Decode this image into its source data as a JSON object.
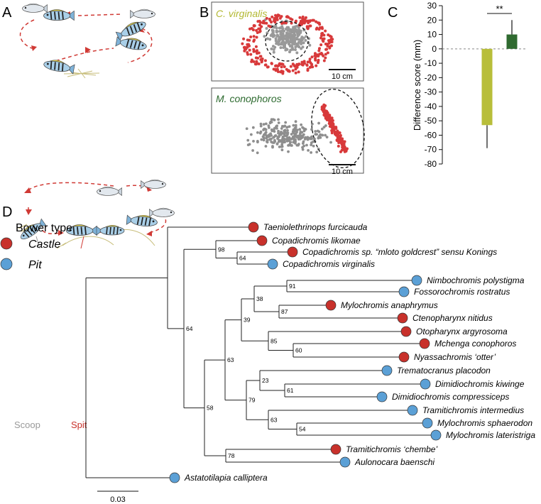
{
  "panel_labels": [
    "A",
    "B",
    "C",
    "D"
  ],
  "panel_a": {
    "scoop_label": "Scoop",
    "spit_label": "Spit"
  },
  "panel_b": {
    "plots": [
      {
        "title": "C. virginalis",
        "title_color": "#b3b832",
        "scale_label": "10 cm"
      },
      {
        "title": "M. conophoros",
        "title_color": "#2e6b30",
        "scale_label": "10 cm"
      }
    ]
  },
  "chart_data": {
    "type": "bar",
    "ylabel": "Difference score (mm)",
    "categories": [
      null,
      null
    ],
    "values": [
      -53,
      10
    ],
    "errors": [
      16,
      10
    ],
    "colors": [
      "#b8be3a",
      "#2f6a30"
    ],
    "ylim": [
      -80,
      30
    ],
    "yticks": [
      -80,
      -70,
      -60,
      -50,
      -40,
      -30,
      -20,
      -10,
      0,
      10,
      20,
      30
    ],
    "significance": "**",
    "zero_line": "dashed"
  },
  "tree": {
    "legend_title": "Bower type",
    "bower_types": [
      {
        "name": "Castle",
        "color": "#c8312b"
      },
      {
        "name": "Pit",
        "color": "#5ba0d6"
      }
    ],
    "taxa": [
      {
        "name": "Taeniolethrinops furcicauda",
        "bower": "Castle"
      },
      {
        "name": "Copadichromis likomae",
        "bower": "Castle"
      },
      {
        "name": "Copadichromis sp. “mloto goldcrest” sensu Konings",
        "bower": "Castle"
      },
      {
        "name": "Copadichromis virginalis",
        "bower": "Pit"
      },
      {
        "name": "Nimbochromis polystigma",
        "bower": "Pit"
      },
      {
        "name": "Fossorochromis rostratus",
        "bower": "Pit"
      },
      {
        "name": "Mylochromis anaphrymus",
        "bower": "Castle"
      },
      {
        "name": "Ctenopharynx nitidus",
        "bower": "Castle"
      },
      {
        "name": "Otopharynx argyrosoma",
        "bower": "Castle"
      },
      {
        "name": "Mchenga conophoros",
        "bower": "Castle"
      },
      {
        "name": "Nyassachromis ‘otter’",
        "bower": "Castle"
      },
      {
        "name": "Trematocranus placodon",
        "bower": "Pit"
      },
      {
        "name": "Dimidiochromis kiwinge",
        "bower": "Pit"
      },
      {
        "name": "Dimidiochromis compressiceps",
        "bower": "Pit"
      },
      {
        "name": "Tramitichromis intermedius",
        "bower": "Pit"
      },
      {
        "name": "Mylochromis sphaerodon",
        "bower": "Pit"
      },
      {
        "name": "Mylochromis lateristriga",
        "bower": "Pit"
      },
      {
        "name": "Tramitichromis ‘chembe’",
        "bower": "Castle"
      },
      {
        "name": "Aulonocara baenschi",
        "bower": "Pit"
      },
      {
        "name": "Astatotilapia calliptera",
        "bower": "Pit"
      }
    ],
    "support": [
      64,
      98,
      64,
      58,
      63,
      39,
      38,
      91,
      87,
      85,
      60,
      79,
      23,
      61,
      63,
      54,
      78
    ],
    "scale_label": "0.03"
  }
}
